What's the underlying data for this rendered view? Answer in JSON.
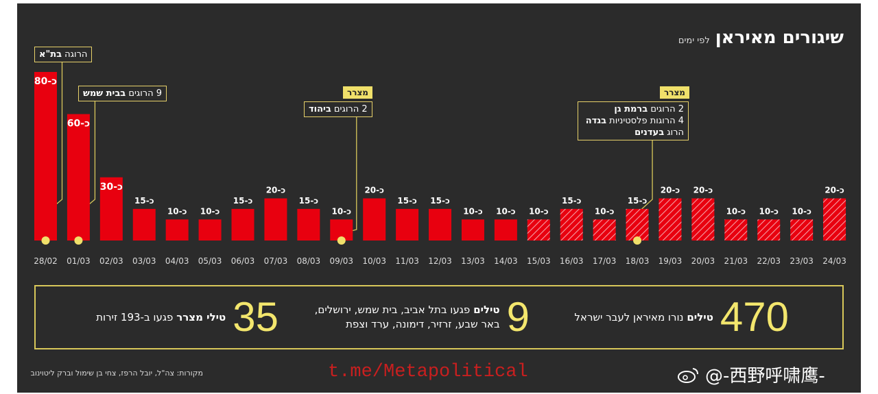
{
  "header": {
    "title": "שיגורים מאיראן",
    "subtitle": "לפי ימים"
  },
  "chart_data": {
    "type": "bar",
    "title": "שיגורים מאיראן",
    "subtitle": "לפי ימים",
    "categories": [
      "28/02",
      "01/03",
      "02/03",
      "03/03",
      "04/03",
      "05/03",
      "06/03",
      "07/03",
      "08/03",
      "09/03",
      "10/03",
      "11/03",
      "12/03",
      "13/03",
      "14/03",
      "15/03",
      "16/03",
      "17/03",
      "18/03",
      "19/03",
      "20/03",
      "21/03",
      "22/03",
      "23/03",
      "24/03"
    ],
    "values": [
      80,
      60,
      30,
      15,
      10,
      10,
      15,
      20,
      15,
      10,
      20,
      15,
      15,
      10,
      10,
      10,
      15,
      10,
      15,
      20,
      20,
      10,
      10,
      10,
      20
    ],
    "labels": [
      "כ-80",
      "כ-60",
      "כ-30",
      "כ-15",
      "כ-10",
      "כ-10",
      "כ-15",
      "כ-20",
      "כ-15",
      "כ-10",
      "כ-20",
      "כ-15",
      "כ-15",
      "כ-10",
      "כ-10",
      "כ-10",
      "כ-15",
      "כ-10",
      "כ-15",
      "כ-20",
      "כ-20",
      "כ-10",
      "כ-10",
      "כ-10",
      "כ-20"
    ],
    "hatched": [
      false,
      false,
      false,
      false,
      false,
      false,
      false,
      false,
      false,
      false,
      false,
      false,
      false,
      false,
      false,
      true,
      true,
      true,
      true,
      true,
      true,
      true,
      true,
      true,
      true
    ],
    "ylim": [
      0,
      80
    ],
    "xlabel": "",
    "ylabel": "",
    "colors": {
      "bar": "#e8000f",
      "marker": "#f0e06a",
      "background": "#2b2b2b",
      "text": "#ffffff"
    }
  },
  "annotations": [
    {
      "date": "28/02",
      "text_plain": "הרוגה ",
      "text_bold": "בת\"א",
      "tag": ""
    },
    {
      "date": "01/03",
      "text_plain": "9 הרוגים ",
      "text_bold": "בבית שמש",
      "tag": ""
    },
    {
      "date": "09/03",
      "text_plain": "2 הרוגים ",
      "text_bold": "ביהוד",
      "tag": "מצרר"
    },
    {
      "date": "18/03",
      "line1_plain": "2 הרוגים ",
      "line1_bold": "ברמת גן",
      "line2_plain": "4 הרוגות פלסטיניות ",
      "line2_bold": "בגדה",
      "line3_plain": "הרוג ",
      "line3_bold": "בעדנים",
      "tag": "מצרר"
    }
  ],
  "stats": [
    {
      "number": "470",
      "bold": "טילים",
      "text": "נורו מאיראן לעבר ישראל",
      "text2": ""
    },
    {
      "number": "9",
      "bold": "טילים",
      "text": "פגעו בתל אביב, בית שמש, ירושלים,",
      "text2": "באר שבע, זרזיר, דימונה, ערד וצפת"
    },
    {
      "number": "35",
      "bold": "טילי מצרר",
      "text": "פגעו ב-193 זירות",
      "text2": ""
    }
  ],
  "footer": {
    "source": "מקורות: צה\"ל, יובל הרפז, צחי בן שימול וברק ליטוינוב",
    "watermark": "t.me/Metapolitical",
    "weibo": "@-西野呼啸鹰-"
  }
}
